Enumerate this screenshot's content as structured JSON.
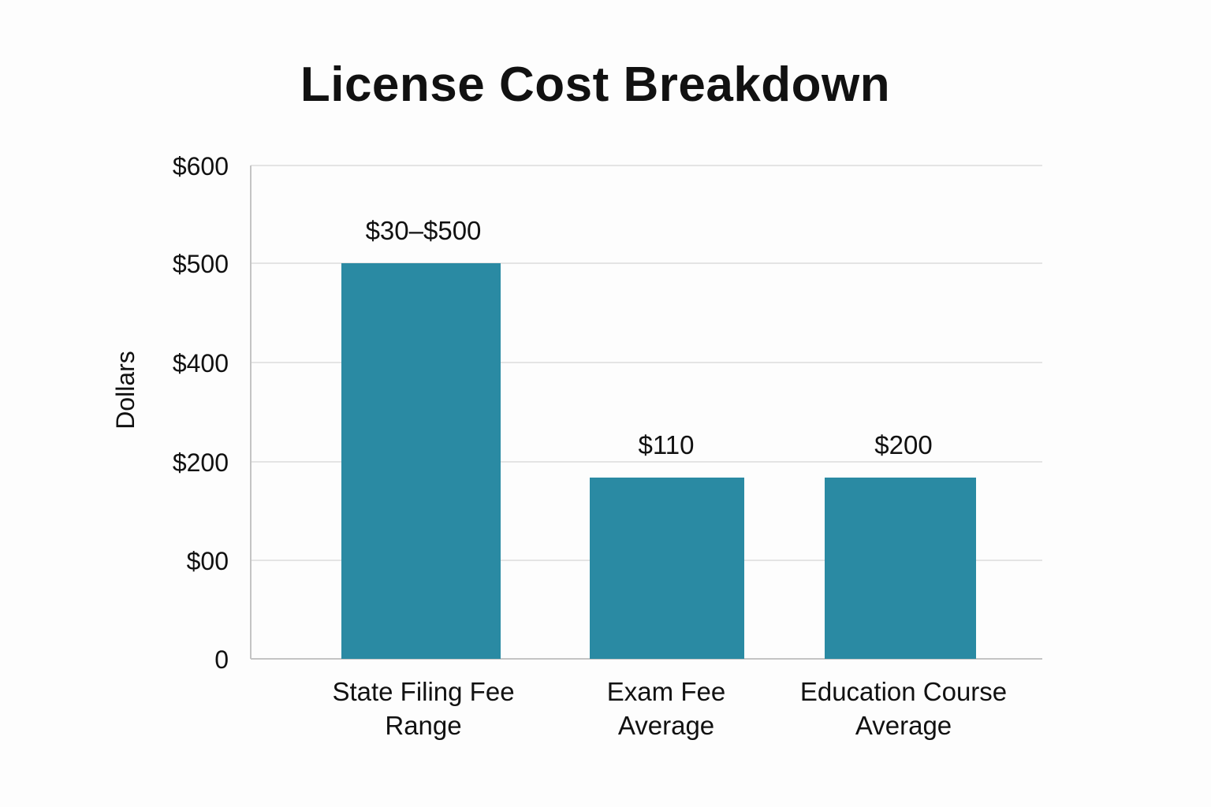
{
  "chart_data": {
    "type": "bar",
    "title": "License Cost Breakdown",
    "xlabel": "",
    "ylabel": "Dollars",
    "y_tick_labels": [
      "0",
      "$00",
      "$200",
      "$400",
      "$500",
      "$600"
    ],
    "categories": [
      [
        "State Filing Fee",
        "Range"
      ],
      [
        "Exam Fee",
        "Average"
      ],
      [
        "Education Course",
        "Average"
      ]
    ],
    "values": [
      500,
      110,
      200
    ],
    "data_labels": [
      "$30–$500",
      "$110",
      "$200"
    ],
    "bar_color": "#2a8aa3",
    "grid": true,
    "legend": "none"
  }
}
